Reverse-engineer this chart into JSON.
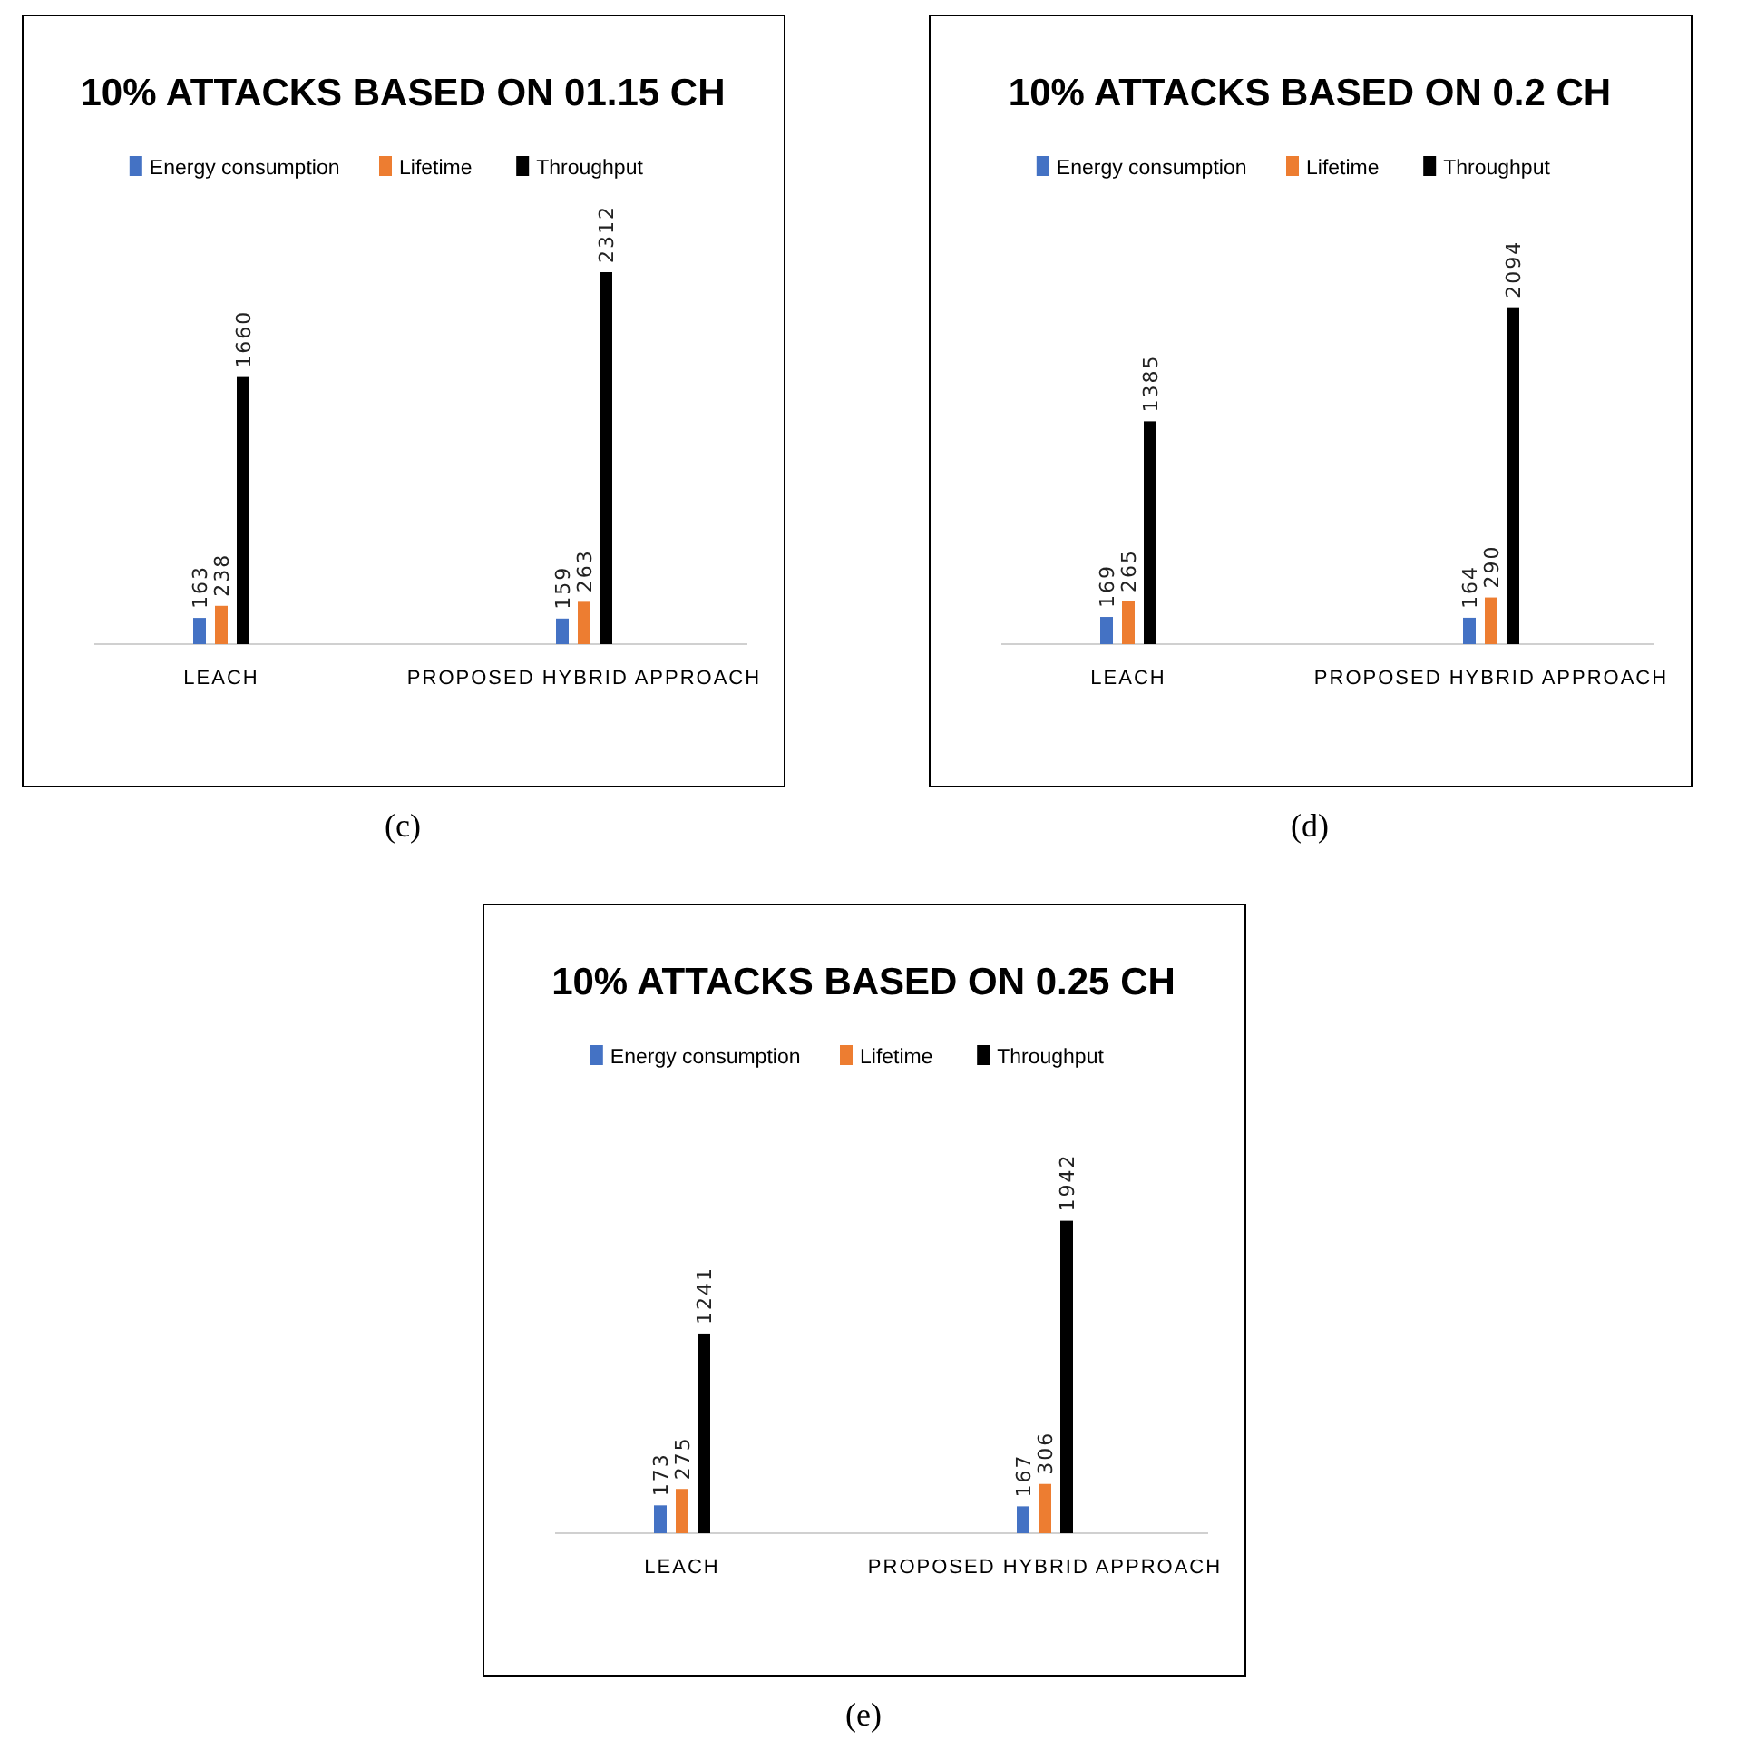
{
  "chart_data": [
    {
      "type": "bar",
      "title": "10% ATTACKS  BASED ON 01.15 CH",
      "categories": [
        "LEACH",
        "PROPOSED HYBRID APPROACH"
      ],
      "series": [
        {
          "name": "Energy consumption",
          "color": "#4472c4",
          "values": [
            163,
            159
          ]
        },
        {
          "name": "Lifetime",
          "color": "#ed7d31",
          "values": [
            238,
            263
          ]
        },
        {
          "name": "Throughput",
          "color": "#000000",
          "values": [
            1660,
            2312
          ]
        }
      ],
      "data_labels": true,
      "legend": "top",
      "annotations": [
        "(c)"
      ]
    },
    {
      "type": "bar",
      "title": "10% ATTACKS  BASED ON 0.2 CH",
      "categories": [
        "LEACH",
        "PROPOSED HYBRID APPROACH"
      ],
      "series": [
        {
          "name": "Energy consumption",
          "color": "#4472c4",
          "values": [
            169,
            164
          ]
        },
        {
          "name": "Lifetime",
          "color": "#ed7d31",
          "values": [
            265,
            290
          ]
        },
        {
          "name": "Throughput",
          "color": "#000000",
          "values": [
            1385,
            2094
          ]
        }
      ],
      "data_labels": true,
      "legend": "top",
      "annotations": [
        "(d)"
      ]
    },
    {
      "type": "bar",
      "title": "10% ATTACKS  BASED ON 0.25 CH",
      "categories": [
        "LEACH",
        "PROPOSED HYBRID APPROACH"
      ],
      "series": [
        {
          "name": "Energy consumption",
          "color": "#4472c4",
          "values": [
            173,
            167
          ]
        },
        {
          "name": "Lifetime",
          "color": "#ed7d31",
          "values": [
            275,
            306
          ]
        },
        {
          "name": "Throughput",
          "color": "#000000",
          "values": [
            1241,
            1942
          ]
        }
      ],
      "data_labels": true,
      "legend": "top",
      "annotations": [
        "(e)"
      ]
    }
  ]
}
